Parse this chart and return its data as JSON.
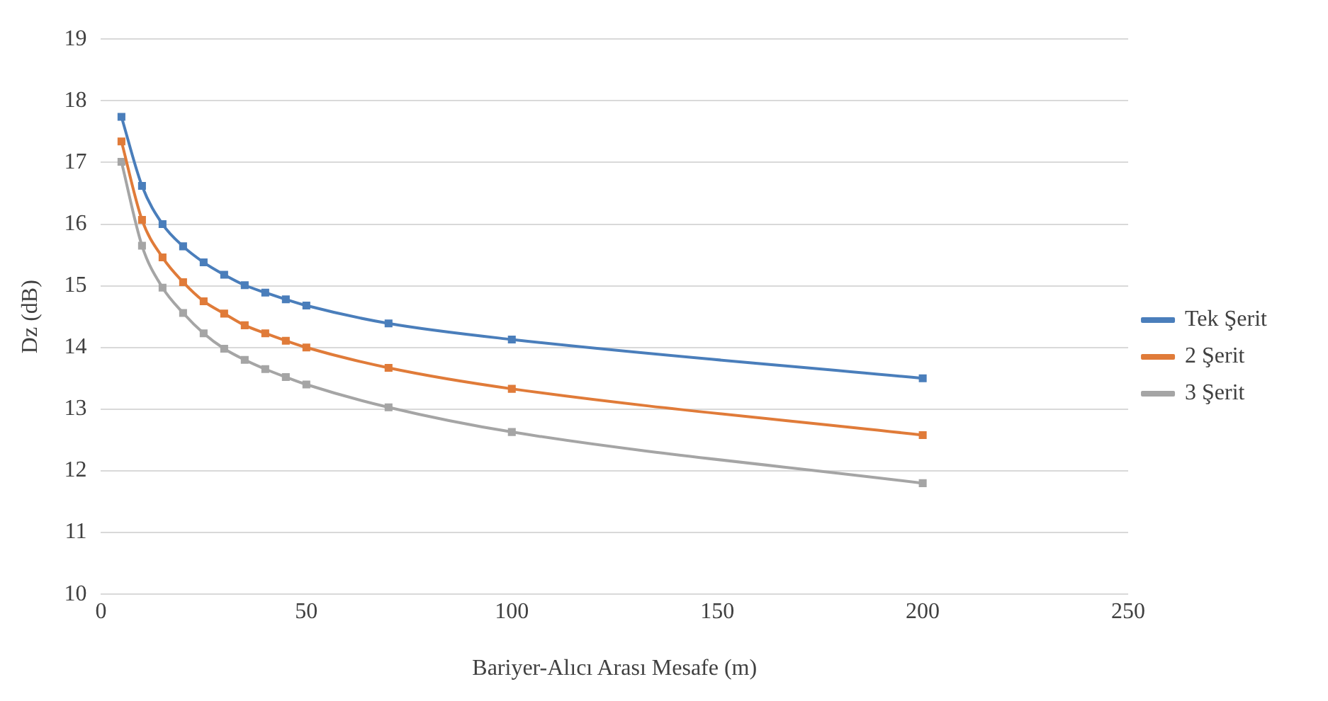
{
  "chart_data": {
    "type": "line",
    "xlabel": "Bariyer-Alıcı Arası Mesafe (m)",
    "ylabel": "Dz (dB)",
    "x": [
      5,
      10,
      15,
      20,
      25,
      30,
      35,
      40,
      45,
      50,
      70,
      100,
      200
    ],
    "series": [
      {
        "name": "Tek Şerit",
        "color": "#4a7ebb",
        "values": [
          17.74,
          16.62,
          16.0,
          15.64,
          15.38,
          15.18,
          15.01,
          14.89,
          14.78,
          14.68,
          14.39,
          14.13,
          13.5
        ]
      },
      {
        "name": "2 Şerit",
        "color": "#e07b39",
        "values": [
          17.34,
          16.07,
          15.46,
          15.06,
          14.75,
          14.55,
          14.36,
          14.23,
          14.11,
          14.0,
          13.67,
          13.33,
          12.58
        ]
      },
      {
        "name": "3 Şerit",
        "color": "#a5a5a5",
        "values": [
          17.01,
          15.65,
          14.97,
          14.56,
          14.23,
          13.98,
          13.8,
          13.65,
          13.52,
          13.4,
          13.03,
          12.63,
          11.8
        ]
      }
    ],
    "xlim": [
      0,
      250
    ],
    "xticks": [
      0,
      50,
      100,
      150,
      200,
      250
    ],
    "ylim": [
      10,
      19
    ],
    "yticks": [
      10,
      11,
      12,
      13,
      14,
      15,
      16,
      17,
      18,
      19
    ],
    "grid": "y",
    "legend": "right",
    "marker": "square"
  }
}
